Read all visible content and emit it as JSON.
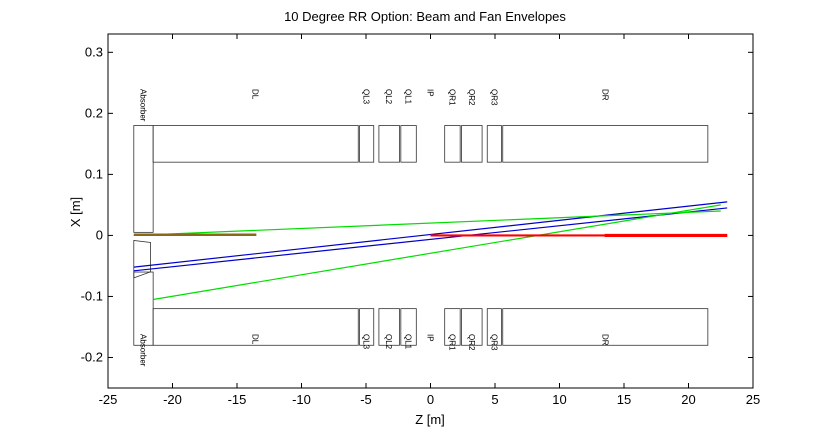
{
  "chart_data": {
    "type": "line",
    "title": "10 Degree RR Option: Beam and Fan Envelopes",
    "xlabel": "Z [m]",
    "ylabel": "X [m]",
    "xlim": [
      -25,
      25
    ],
    "ylim": [
      -0.25,
      0.33
    ],
    "xticks": [
      "-25",
      "-20",
      "-15",
      "-10",
      "-5",
      "0",
      "5",
      "10",
      "15",
      "20",
      "25"
    ],
    "yticks": [
      "-0.2",
      "-0.1",
      "0",
      "0.1",
      "0.2",
      "0.3"
    ],
    "grid": false,
    "legend": "none",
    "components": {
      "upper": [
        {
          "name": "Absorber",
          "z": [
            -23,
            -21.5
          ],
          "x": [
            0.005,
            0.18
          ]
        },
        {
          "name": "DL",
          "z": [
            -21.5,
            -5.6
          ],
          "x": [
            0.12,
            0.18
          ]
        },
        {
          "name": "QL3",
          "z": [
            -5.5,
            -4.4
          ],
          "x": [
            0.12,
            0.18
          ]
        },
        {
          "name": "QL2",
          "z": [
            -4.0,
            -2.4
          ],
          "x": [
            0.12,
            0.18
          ]
        },
        {
          "name": "QL1",
          "z": [
            -2.3,
            -1.1
          ],
          "x": [
            0.12,
            0.18
          ]
        },
        {
          "name": "QR1",
          "z": [
            1.1,
            2.3
          ],
          "x": [
            0.12,
            0.18
          ]
        },
        {
          "name": "QR2",
          "z": [
            2.4,
            4.0
          ],
          "x": [
            0.12,
            0.18
          ]
        },
        {
          "name": "QR3",
          "z": [
            4.4,
            5.5
          ],
          "x": [
            0.12,
            0.18
          ]
        },
        {
          "name": "DR",
          "z": [
            5.6,
            21.5
          ],
          "x": [
            0.12,
            0.18
          ]
        }
      ],
      "lower": [
        {
          "name": "Absorber",
          "z": [
            -23,
            -21.5
          ],
          "x": [
            -0.18,
            -0.06
          ]
        },
        {
          "name": "DL",
          "z": [
            -21.5,
            -5.6
          ],
          "x": [
            -0.18,
            -0.12
          ]
        },
        {
          "name": "QL3",
          "z": [
            -5.5,
            -4.4
          ],
          "x": [
            -0.18,
            -0.12
          ]
        },
        {
          "name": "QL2",
          "z": [
            -4.0,
            -2.4
          ],
          "x": [
            -0.18,
            -0.12
          ]
        },
        {
          "name": "QL1",
          "z": [
            -2.3,
            -1.1
          ],
          "x": [
            -0.18,
            -0.12
          ]
        },
        {
          "name": "QR1",
          "z": [
            1.1,
            2.3
          ],
          "x": [
            -0.18,
            -0.12
          ]
        },
        {
          "name": "QR2",
          "z": [
            2.4,
            4.0
          ],
          "x": [
            -0.18,
            -0.12
          ]
        },
        {
          "name": "QR3",
          "z": [
            4.4,
            5.5
          ],
          "x": [
            -0.18,
            -0.12
          ]
        },
        {
          "name": "DR",
          "z": [
            5.6,
            21.5
          ],
          "x": [
            -0.18,
            -0.12
          ]
        }
      ],
      "absorber_notch": {
        "z": [
          -23,
          -21.7
        ],
        "x": [
          -0.04,
          -0.005
        ]
      },
      "ip_marker": {
        "name": "IP",
        "z": 0
      }
    },
    "series": [
      {
        "color": "#0000cc",
        "x": [
          -23,
          23
        ],
        "y": [
          -0.052,
          0.055
        ]
      },
      {
        "color": "#0000cc",
        "x": [
          -23,
          23
        ],
        "y": [
          -0.058,
          0.045
        ]
      },
      {
        "color": "#00dd00",
        "x": [
          -21.5,
          22.5
        ],
        "y": [
          -0.105,
          0.05
        ]
      },
      {
        "color": "#00dd00",
        "x": [
          -23,
          22.5
        ],
        "y": [
          0.0,
          0.04
        ]
      },
      {
        "color": "#8b6914",
        "x": [
          -23,
          -13.5
        ],
        "y": [
          0.001,
          0.001
        ]
      },
      {
        "color": "#ff0000",
        "x": [
          0,
          23
        ],
        "y": [
          0.0,
          0.0
        ]
      }
    ]
  }
}
